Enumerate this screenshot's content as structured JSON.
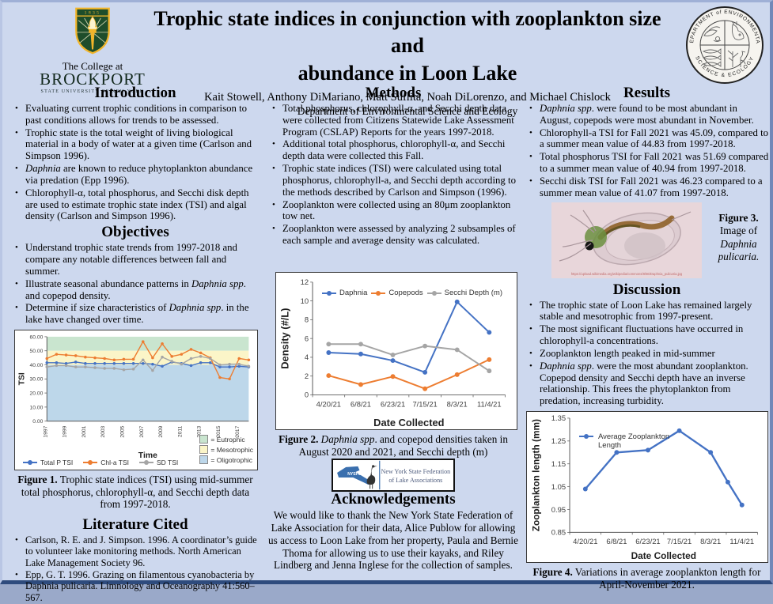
{
  "header": {
    "title_line1": "Trophic state indices in conjunction with zooplankton size and",
    "title_line2": "abundance in Loon Lake",
    "authors": "Kait Stowell, Anthony DiMariano, Matt Suflita, Noah DiLorenzo, and Michael Chislock",
    "department": "Department of Environmental Science and Ecology"
  },
  "brockport": {
    "shield_year": "1835",
    "line1": "The College at",
    "line2": "BROCKPORT",
    "line3": "STATE UNIVERSITY OF NEW YORK",
    "green": "#1e4d2b",
    "gold": "#f2b52a"
  },
  "seal": {
    "top_text": "DEPARTMENT of ENVIRONMENTAL",
    "bottom_text": "SCIENCE & ECOLOGY"
  },
  "nysfola": {
    "acronym": "NYSFOLA",
    "line1": "New York State Federation",
    "line2": "of Lake Associations",
    "blue": "#3a6fae"
  },
  "sections": {
    "introduction": {
      "heading": "Introduction",
      "bullets": [
        [
          {
            "t": "Evaluating current trophic conditions in comparison to past conditions allows for trends to be assessed."
          }
        ],
        [
          {
            "t": "Trophic state is the total weight of living biological material in a body of water at a given time (Carlson and Simpson 1996)."
          }
        ],
        [
          {
            "t": "Daphnia",
            "i": true
          },
          {
            "t": " are known to reduce phytoplankton abundance via predation (Epp 1996)."
          }
        ],
        [
          {
            "t": "Chlorophyll-α, total phosphorus, and Secchi disk depth are used to estimate trophic state index (TSI) and algal density (Carlson and Simpson 1996)."
          }
        ]
      ]
    },
    "objectives": {
      "heading": "Objectives",
      "bullets": [
        [
          {
            "t": "Understand trophic state trends from 1997-2018 and compare any notable differences between fall and summer."
          }
        ],
        [
          {
            "t": "Illustrate seasonal abundance patterns in "
          },
          {
            "t": "Daphnia spp",
            "i": true
          },
          {
            "t": ". and copepod density."
          }
        ],
        [
          {
            "t": "Determine if size characteristics of "
          },
          {
            "t": "Daphnia spp",
            "i": true
          },
          {
            "t": ". in the lake have changed over time."
          }
        ]
      ]
    },
    "methods": {
      "heading": "Methods",
      "bullets": [
        [
          {
            "t": "Total phosphorus, chlorophyll-α, and Secchi depth data were collected from Citizens Statewide Lake Assessment Program (CSLAP) Reports for the years 1997-2018."
          }
        ],
        [
          {
            "t": "Additional total phosphorus, chlorophyll-α, and Secchi depth data were collected this Fall."
          }
        ],
        [
          {
            "t": "Trophic state indices (TSI) were calculated using total phosphorus, chlorophyll-a, and Secchi depth according to the methods described by Carlson and Simpson (1996)."
          }
        ],
        [
          {
            "t": "Zooplankton were collected using an 80μm zooplankton tow net."
          }
        ],
        [
          {
            "t": "Zooplankton were assessed by analyzing 2 subsamples of each sample and average density was calculated."
          }
        ]
      ]
    },
    "results": {
      "heading": "Results",
      "bullets": [
        [
          {
            "t": "Daphnia spp",
            "i": true
          },
          {
            "t": ". were found to be most abundant in August, copepods were most abundant in November."
          }
        ],
        [
          {
            "t": "Chlorophyll-a TSI for Fall 2021 was 45.09, compared to a summer mean value of 44.83 from 1997-2018."
          }
        ],
        [
          {
            "t": "Total phosphorus TSI for Fall 2021 was 51.69 compared to a summer mean value of 40.94 from 1997-2018."
          }
        ],
        [
          {
            "t": "Secchi disk TSI for Fall 2021 was 46.23 compared to a summer mean value of 41.07 from 1997-2018."
          }
        ]
      ]
    },
    "discussion": {
      "heading": "Discussion",
      "bullets": [
        [
          {
            "t": "The trophic state of Loon Lake has remained largely stable and mesotrophic from 1997-present."
          }
        ],
        [
          {
            "t": "The most significant fluctuations have occurred in chlorophyll-a concentrations."
          }
        ],
        [
          {
            "t": "Zooplankton length peaked in mid-summer"
          }
        ],
        [
          {
            "t": "Daphnia spp",
            "i": true
          },
          {
            "t": ". were the most abundant zooplankton. Copepod density and Secchi depth have an inverse relationship. This frees the phytoplankton from predation, increasing turbidity."
          }
        ]
      ]
    },
    "literature": {
      "heading": "Literature Cited",
      "bullets": [
        [
          {
            "t": "Carlson, R. E. and J. Simpson. 1996. A coordinator’s guide to volunteer lake monitoring methods. North American Lake Management Society 96."
          }
        ],
        [
          {
            "t": "Epp, G. T. 1996. Grazing on filamentous cyanobacteria by Daphnia pulicaria. Limnology and Oceanography 41:560–567."
          }
        ]
      ]
    },
    "acknowledgements": {
      "heading": "Acknowledgements",
      "text": "We would like to thank the New York State Federation of Lake Association for their data, Alice Publow for allowing us access to Loon Lake from her property, Paula and Bernie Thoma for allowing us to use their kayaks, and Riley Lindberg and Jenna Inglese for the collection of samples."
    }
  },
  "figures": {
    "fig1": {
      "caption": [
        {
          "t": "Figure 1.",
          "b": true
        },
        {
          "t": " Trophic state indices (TSI) using mid-summer total phosphorus, chlorophyll-α, and Secchi depth data from 1997-2018."
        }
      ]
    },
    "fig2": {
      "caption": [
        {
          "t": "Figure 2.",
          "b": true
        },
        {
          "t": " Daphnia spp",
          "i": true
        },
        {
          "t": ". and copepod densities taken in August 2020 and 2021, and Secchi depth (m)"
        }
      ]
    },
    "fig3": {
      "caption_lines": [
        [
          {
            "t": "Figure 3.",
            "b": true
          }
        ],
        [
          {
            "t": "Image of"
          }
        ],
        [
          {
            "t": "Daphnia",
            "i": true
          }
        ],
        [
          {
            "t": "pulicaria.",
            "i": true
          }
        ]
      ],
      "watermark": "https://upload.wikimedia.org/wikipedia/commons/8/86/Daphnia_pulicaria.jpg"
    },
    "fig4": {
      "caption": [
        {
          "t": "Figure 4.",
          "b": true
        },
        {
          "t": " Variations in average zooplankton length for April-November 2021."
        }
      ]
    }
  },
  "chart_data": [
    {
      "type": "line",
      "title": "",
      "xlabel": "Time",
      "ylabel": "TSI",
      "ylim": [
        0,
        60
      ],
      "yticks": [
        0,
        10,
        20,
        30,
        40,
        50,
        60
      ],
      "xtick_every": 2,
      "categories": [
        "1997",
        "1998",
        "1999",
        "2000",
        "2001",
        "2002",
        "2003",
        "2004",
        "2005",
        "2006",
        "2007",
        "2008",
        "2009",
        "2010",
        "2011",
        "2012",
        "2013",
        "2014",
        "2015",
        "2016",
        "2017",
        "2018"
      ],
      "bands": [
        {
          "label": "= Eutrophic",
          "color": "#c9e5cf",
          "from": 50,
          "to": 60
        },
        {
          "label": "= Mesotrophic",
          "color": "#fbf5c8",
          "from": 40,
          "to": 50
        },
        {
          "label": "= Oligotrophic",
          "color": "#bdd7ea",
          "from": 0,
          "to": 40
        }
      ],
      "series": [
        {
          "name": "Total P TSI",
          "color": "#4472c4",
          "values": [
            41.5,
            41.5,
            41,
            42,
            41,
            41,
            41,
            41,
            41,
            41,
            41,
            40.5,
            39,
            42,
            41,
            39.5,
            41.5,
            41.5,
            38.5,
            38.5,
            39,
            38.5
          ]
        },
        {
          "name": "Chl-a TSI",
          "color": "#ed7d31",
          "values": [
            44.5,
            47.5,
            47,
            46.5,
            45.5,
            45,
            44.5,
            43.5,
            44,
            44,
            56.5,
            45,
            55,
            46,
            47.5,
            51,
            48.5,
            45,
            31,
            30,
            44.5,
            43.5
          ]
        },
        {
          "name": "SD TSI",
          "color": "#a5a5a5",
          "values": [
            38.5,
            39.5,
            39.5,
            38.5,
            38.5,
            38,
            37.5,
            37.5,
            36.5,
            37,
            43.5,
            36,
            45.5,
            42.5,
            40.5,
            44.5,
            46,
            44.5,
            40,
            40.5,
            40.5,
            39
          ]
        }
      ]
    },
    {
      "type": "line",
      "title": "",
      "xlabel": "Date Collected",
      "ylabel": "Density (#/L)",
      "ylim": [
        0,
        12
      ],
      "yticks": [
        0,
        2,
        4,
        6,
        8,
        10,
        12
      ],
      "categories": [
        "4/20/21",
        "6/8/21",
        "6/23/21",
        "7/15/21",
        "8/3/21",
        "11/4/21"
      ],
      "series": [
        {
          "name": "Daphnia",
          "color": "#4472c4",
          "values": [
            4.5,
            4.35,
            3.65,
            2.4,
            9.9,
            6.65
          ]
        },
        {
          "name": "Copepods",
          "color": "#ed7d31",
          "values": [
            2.05,
            1.1,
            1.95,
            0.65,
            2.15,
            3.75
          ]
        },
        {
          "name": "Secchi Depth (m)",
          "color": "#a5a5a5",
          "values": [
            5.4,
            5.4,
            4.25,
            5.2,
            4.8,
            2.55
          ]
        }
      ]
    },
    {
      "type": "line",
      "title": "",
      "xlabel": "Date Collected",
      "ylabel": "Zooplankton length (mm)",
      "ylim": [
        0.85,
        1.35
      ],
      "yticks": [
        0.85,
        0.95,
        1.05,
        1.15,
        1.25,
        1.35
      ],
      "categories": [
        "4/20/21",
        "6/8/21",
        "6/23/21",
        "7/15/21",
        "8/3/21",
        "11/4/21"
      ],
      "series": [
        {
          "name": "Average Zooplankton Length",
          "legend_line1": "Average Zooplankton",
          "legend_line2": "Length",
          "color": "#4472c4",
          "x": [
            0,
            1,
            2,
            3,
            4,
            4.55,
            5
          ],
          "values": [
            1.04,
            1.2,
            1.21,
            1.295,
            1.2,
            1.07,
            0.97
          ]
        }
      ]
    }
  ]
}
